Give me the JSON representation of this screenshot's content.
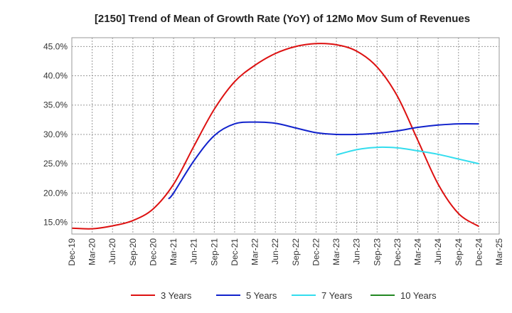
{
  "chart_data": {
    "type": "line",
    "title": "[2150]  Trend of Mean of Growth Rate (YoY) of 12Mo Mov Sum of Revenues",
    "xlabel": "",
    "ylabel": "",
    "ylim": [
      13.0,
      46.5
    ],
    "y_ticks": [
      15.0,
      20.0,
      25.0,
      30.0,
      35.0,
      40.0,
      45.0
    ],
    "y_tick_labels": [
      "15.0%",
      "20.0%",
      "25.0%",
      "30.0%",
      "35.0%",
      "40.0%",
      "45.0%"
    ],
    "x_tick_labels": [
      "Dec-19",
      "Mar-20",
      "Jun-20",
      "Sep-20",
      "Dec-20",
      "Mar-21",
      "Jun-21",
      "Sep-21",
      "Dec-21",
      "Mar-22",
      "Jun-22",
      "Sep-22",
      "Dec-22",
      "Mar-23",
      "Jun-23",
      "Sep-23",
      "Dec-23",
      "Mar-24",
      "Jun-24",
      "Sep-24",
      "Dec-24",
      "Mar-25"
    ],
    "x_range": [
      0,
      21
    ],
    "grid": true,
    "legend_position": "bottom",
    "series": [
      {
        "name": "3 Years",
        "color": "#dd1111",
        "x": [
          0,
          1,
          2,
          3,
          4,
          5,
          6,
          7,
          8,
          9,
          10,
          11,
          12,
          13,
          14,
          15,
          16,
          17,
          18,
          19,
          20
        ],
        "values": [
          14.0,
          13.9,
          14.4,
          15.3,
          17.3,
          21.5,
          28.0,
          34.3,
          39.0,
          41.8,
          43.8,
          45.0,
          45.5,
          45.3,
          44.2,
          41.5,
          36.5,
          29.0,
          21.5,
          16.5,
          14.3
        ]
      },
      {
        "name": "5 Years",
        "color": "#1122cc",
        "x": [
          4.75,
          5,
          6,
          7,
          8,
          9,
          10,
          11,
          12,
          13,
          14,
          15,
          16,
          17,
          18,
          19,
          20
        ],
        "values": [
          19.0,
          20.0,
          25.5,
          29.8,
          31.8,
          32.1,
          31.9,
          31.1,
          30.3,
          30.0,
          30.0,
          30.2,
          30.6,
          31.2,
          31.6,
          31.8,
          31.8
        ]
      },
      {
        "name": "7 Years",
        "color": "#33ddee",
        "x": [
          13,
          14,
          15,
          16,
          17,
          18,
          19,
          20
        ],
        "values": [
          26.5,
          27.4,
          27.8,
          27.7,
          27.2,
          26.6,
          25.8,
          25.0
        ]
      },
      {
        "name": "10 Years",
        "color": "#228822",
        "x": [],
        "values": []
      }
    ]
  }
}
